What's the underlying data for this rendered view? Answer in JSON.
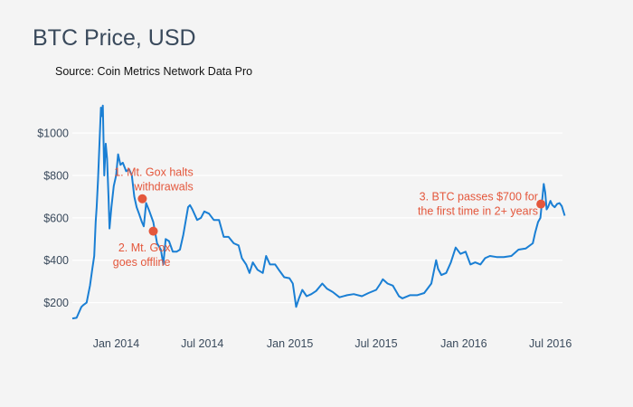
{
  "title": "BTC Price, USD",
  "source": "Source: Coin Metrics Network Data Pro",
  "chart_data": {
    "type": "line",
    "title": "BTC Price, USD",
    "subtitle": "Source: Coin Metrics Network Data Pro",
    "xlabel": "",
    "ylabel": "",
    "xlim": [
      "2013-10-01",
      "2016-08-01"
    ],
    "ylim": [
      100,
      1150
    ],
    "grid": true,
    "line_color": "#1a7fd4",
    "annotation_color": "#e4573c",
    "y_ticks": [
      {
        "value": 200,
        "label": "$200"
      },
      {
        "value": 400,
        "label": "$400"
      },
      {
        "value": 600,
        "label": "$600"
      },
      {
        "value": 800,
        "label": "$800"
      },
      {
        "value": 1000,
        "label": "$1000"
      }
    ],
    "x_ticks": [
      {
        "date": "2014-01-01",
        "label": "Jan 2014"
      },
      {
        "date": "2014-07-01",
        "label": "Jul 2014"
      },
      {
        "date": "2015-01-01",
        "label": "Jan 2015"
      },
      {
        "date": "2015-07-01",
        "label": "Jul 2015"
      },
      {
        "date": "2016-01-01",
        "label": "Jan 2016"
      },
      {
        "date": "2016-07-01",
        "label": "Jul 2016"
      }
    ],
    "series": [
      {
        "points": [
          [
            "2013-10-01",
            125
          ],
          [
            "2013-10-10",
            128
          ],
          [
            "2013-10-20",
            180
          ],
          [
            "2013-10-25",
            190
          ],
          [
            "2013-10-31",
            200
          ],
          [
            "2013-11-07",
            280
          ],
          [
            "2013-11-12",
            360
          ],
          [
            "2013-11-16",
            420
          ],
          [
            "2013-11-19",
            580
          ],
          [
            "2013-11-21",
            650
          ],
          [
            "2013-11-24",
            780
          ],
          [
            "2013-11-27",
            950
          ],
          [
            "2013-11-30",
            1120
          ],
          [
            "2013-12-02",
            1080
          ],
          [
            "2013-12-04",
            1130
          ],
          [
            "2013-12-07",
            800
          ],
          [
            "2013-12-10",
            950
          ],
          [
            "2013-12-13",
            880
          ],
          [
            "2013-12-16",
            700
          ],
          [
            "2013-12-18",
            550
          ],
          [
            "2013-12-22",
            650
          ],
          [
            "2013-12-27",
            750
          ],
          [
            "2014-01-01",
            800
          ],
          [
            "2014-01-05",
            900
          ],
          [
            "2014-01-10",
            850
          ],
          [
            "2014-01-15",
            860
          ],
          [
            "2014-01-22",
            820
          ],
          [
            "2014-01-28",
            830
          ],
          [
            "2014-02-03",
            800
          ],
          [
            "2014-02-08",
            700
          ],
          [
            "2014-02-13",
            650
          ],
          [
            "2014-02-18",
            620
          ],
          [
            "2014-02-24",
            580
          ],
          [
            "2014-02-28",
            560
          ],
          [
            "2014-03-05",
            670
          ],
          [
            "2014-03-12",
            630
          ],
          [
            "2014-03-20",
            580
          ],
          [
            "2014-03-28",
            480
          ],
          [
            "2014-04-05",
            450
          ],
          [
            "2014-04-10",
            380
          ],
          [
            "2014-04-15",
            500
          ],
          [
            "2014-04-22",
            490
          ],
          [
            "2014-04-30",
            440
          ],
          [
            "2014-05-08",
            440
          ],
          [
            "2014-05-15",
            450
          ],
          [
            "2014-05-22",
            520
          ],
          [
            "2014-06-01",
            650
          ],
          [
            "2014-06-05",
            660
          ],
          [
            "2014-06-10",
            640
          ],
          [
            "2014-06-20",
            590
          ],
          [
            "2014-06-28",
            600
          ],
          [
            "2014-07-05",
            630
          ],
          [
            "2014-07-15",
            620
          ],
          [
            "2014-07-25",
            590
          ],
          [
            "2014-08-05",
            590
          ],
          [
            "2014-08-15",
            510
          ],
          [
            "2014-08-25",
            510
          ],
          [
            "2014-09-05",
            480
          ],
          [
            "2014-09-15",
            470
          ],
          [
            "2014-09-22",
            410
          ],
          [
            "2014-10-01",
            380
          ],
          [
            "2014-10-08",
            340
          ],
          [
            "2014-10-15",
            390
          ],
          [
            "2014-10-25",
            355
          ],
          [
            "2014-11-05",
            340
          ],
          [
            "2014-11-12",
            420
          ],
          [
            "2014-11-20",
            380
          ],
          [
            "2014-12-01",
            380
          ],
          [
            "2014-12-10",
            350
          ],
          [
            "2014-12-20",
            320
          ],
          [
            "2014-12-31",
            315
          ],
          [
            "2015-01-07",
            290
          ],
          [
            "2015-01-14",
            180
          ],
          [
            "2015-01-20",
            220
          ],
          [
            "2015-01-27",
            260
          ],
          [
            "2015-02-05",
            230
          ],
          [
            "2015-02-15",
            240
          ],
          [
            "2015-02-25",
            255
          ],
          [
            "2015-03-10",
            290
          ],
          [
            "2015-03-20",
            265
          ],
          [
            "2015-04-01",
            250
          ],
          [
            "2015-04-15",
            225
          ],
          [
            "2015-05-01",
            235
          ],
          [
            "2015-05-15",
            240
          ],
          [
            "2015-06-01",
            230
          ],
          [
            "2015-06-15",
            245
          ],
          [
            "2015-07-01",
            260
          ],
          [
            "2015-07-10",
            290
          ],
          [
            "2015-07-15",
            310
          ],
          [
            "2015-07-25",
            290
          ],
          [
            "2015-08-05",
            280
          ],
          [
            "2015-08-18",
            230
          ],
          [
            "2015-08-25",
            220
          ],
          [
            "2015-09-10",
            235
          ],
          [
            "2015-09-25",
            235
          ],
          [
            "2015-10-10",
            245
          ],
          [
            "2015-10-25",
            290
          ],
          [
            "2015-11-04",
            400
          ],
          [
            "2015-11-08",
            360
          ],
          [
            "2015-11-15",
            330
          ],
          [
            "2015-11-25",
            340
          ],
          [
            "2015-12-05",
            390
          ],
          [
            "2015-12-15",
            460
          ],
          [
            "2015-12-25",
            430
          ],
          [
            "2016-01-05",
            440
          ],
          [
            "2016-01-15",
            380
          ],
          [
            "2016-01-25",
            390
          ],
          [
            "2016-02-05",
            380
          ],
          [
            "2016-02-15",
            410
          ],
          [
            "2016-02-25",
            420
          ],
          [
            "2016-03-10",
            415
          ],
          [
            "2016-03-25",
            415
          ],
          [
            "2016-04-10",
            420
          ],
          [
            "2016-04-25",
            450
          ],
          [
            "2016-05-10",
            455
          ],
          [
            "2016-05-25",
            480
          ],
          [
            "2016-05-30",
            530
          ],
          [
            "2016-06-05",
            580
          ],
          [
            "2016-06-10",
            600
          ],
          [
            "2016-06-14",
            690
          ],
          [
            "2016-06-17",
            760
          ],
          [
            "2016-06-20",
            720
          ],
          [
            "2016-06-23",
            640
          ],
          [
            "2016-06-26",
            650
          ],
          [
            "2016-07-01",
            680
          ],
          [
            "2016-07-05",
            660
          ],
          [
            "2016-07-10",
            650
          ],
          [
            "2016-07-15",
            665
          ],
          [
            "2016-07-20",
            670
          ],
          [
            "2016-07-25",
            655
          ],
          [
            "2016-07-31",
            610
          ]
        ]
      }
    ],
    "annotations": [
      {
        "date": "2014-02-25",
        "value": 690,
        "lines": [
          "1. Mt. Gox halts",
          "withdrawals"
        ],
        "anchor": "end",
        "label_at": [
          "2014-06-12",
          797
        ]
      },
      {
        "date": "2014-03-20",
        "value": 537,
        "lines": [
          "2. Mt. Gox",
          "goes offline"
        ],
        "anchor": "end",
        "label_at": [
          "2014-04-25",
          442
        ]
      },
      {
        "date": "2016-06-11",
        "value": 665,
        "lines": [
          "3. BTC passes $700 for",
          "the first time in 2+ years"
        ],
        "anchor": "end",
        "label_at": [
          "2016-06-05",
          683
        ]
      }
    ]
  }
}
